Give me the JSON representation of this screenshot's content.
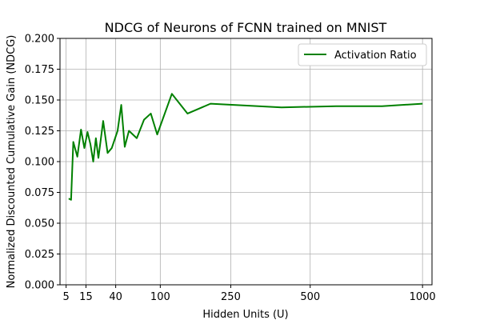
{
  "chart_data": {
    "type": "line",
    "title": "NDCG of Neurons of FCNN trained on MNIST",
    "xlabel": "Hidden Units (U)",
    "ylabel": "Normalized Discounted Cumulative Gain (NDCG)",
    "x_scale": "sqrt",
    "xlim": [
      3,
      1050
    ],
    "ylim": [
      0.0,
      0.2
    ],
    "x_ticks": [
      5,
      15,
      40,
      100,
      250,
      500,
      1000
    ],
    "x_tick_labels": [
      "5",
      "15",
      "40",
      "100",
      "250",
      "500",
      "1000"
    ],
    "y_ticks": [
      0.0,
      0.025,
      0.05,
      0.075,
      0.1,
      0.125,
      0.15,
      0.175,
      0.2
    ],
    "y_tick_labels": [
      "0.000",
      "0.025",
      "0.050",
      "0.075",
      "0.100",
      "0.125",
      "0.150",
      "0.175",
      "0.200"
    ],
    "grid": true,
    "legend_position": "top-right",
    "series": [
      {
        "name": "Activation Ratio",
        "color": "#008000",
        "x": [
          6,
          7,
          8,
          10,
          12,
          14,
          16,
          18,
          20,
          22,
          24,
          28,
          32,
          36,
          42,
          46,
          50,
          55,
          65,
          75,
          85,
          95,
          120,
          150,
          200,
          400,
          600,
          800,
          1000
        ],
        "y": [
          0.07,
          0.069,
          0.116,
          0.104,
          0.126,
          0.111,
          0.124,
          0.114,
          0.1,
          0.119,
          0.103,
          0.133,
          0.107,
          0.111,
          0.125,
          0.146,
          0.112,
          0.125,
          0.119,
          0.134,
          0.139,
          0.122,
          0.155,
          0.139,
          0.147,
          0.144,
          0.145,
          0.145,
          0.147
        ]
      }
    ]
  }
}
